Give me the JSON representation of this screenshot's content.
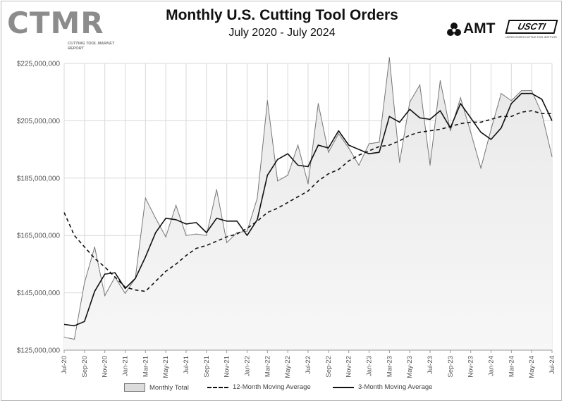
{
  "header": {
    "title": "Monthly U.S. Cutting Tool Orders",
    "subtitle": "July 2020 - July 2024"
  },
  "logos": {
    "ctmr": {
      "text": "CTMR",
      "subtitle": "CUTTING TOOL MARKET REPORT"
    },
    "amt": {
      "text": "AMT"
    },
    "usctr": {
      "text": "USCTI",
      "subtitle": "UNITED STATES CUTTING TOOL INSTITUTE"
    }
  },
  "colors": {
    "area_fill": "#dcdcdc",
    "area_edge": "#777777",
    "line": "#111111",
    "grid": "#d9d9d9",
    "axis_text": "#555555"
  },
  "chart_data": {
    "type": "area",
    "title": "Monthly U.S. Cutting Tool Orders",
    "subtitle": "July 2020 - July 2024",
    "ylim": [
      125000000,
      225000000
    ],
    "yticks": [
      125000000,
      145000000,
      165000000,
      185000000,
      205000000,
      225000000
    ],
    "ytick_labels": [
      "$125,000,000",
      "$145,000,000",
      "$165,000,000",
      "$185,000,000",
      "$205,000,000",
      "$225,000,000"
    ],
    "xtick_labels": [
      "Jul-20",
      "Sep-20",
      "Nov-20",
      "Jan-21",
      "Mar-21",
      "May-21",
      "Jul-21",
      "Sep-21",
      "Nov-21",
      "Jan-22",
      "Mar-22",
      "May-22",
      "Jul-22",
      "Sep-22",
      "Nov-22",
      "Jan-23",
      "Mar-23",
      "May-23",
      "Jul-23",
      "Sep-23",
      "Nov-23",
      "Jan-24",
      "Mar-24",
      "May-24",
      "Jul-24"
    ],
    "x": [
      "Jul-20",
      "Aug-20",
      "Sep-20",
      "Oct-20",
      "Nov-20",
      "Dec-20",
      "Jan-21",
      "Feb-21",
      "Mar-21",
      "Apr-21",
      "May-21",
      "Jun-21",
      "Jul-21",
      "Aug-21",
      "Sep-21",
      "Oct-21",
      "Nov-21",
      "Dec-21",
      "Jan-22",
      "Feb-22",
      "Mar-22",
      "Apr-22",
      "May-22",
      "Jun-22",
      "Jul-22",
      "Aug-22",
      "Sep-22",
      "Oct-22",
      "Nov-22",
      "Dec-22",
      "Jan-23",
      "Feb-23",
      "Mar-23",
      "Apr-23",
      "May-23",
      "Jun-23",
      "Jul-23",
      "Aug-23",
      "Sep-23",
      "Oct-23",
      "Nov-23",
      "Dec-23",
      "Jan-24",
      "Feb-24",
      "Mar-24",
      "Apr-24",
      "May-24",
      "Jun-24",
      "Jul-24"
    ],
    "grid": true,
    "legend_position": "bottom",
    "series": [
      {
        "name": "Monthly Total",
        "style": "area",
        "values": [
          129.5,
          128.8,
          148.5,
          161.0,
          144.0,
          150.5,
          144.8,
          150.0,
          178.0,
          171.0,
          164.5,
          175.5,
          165.0,
          165.5,
          165.0,
          181.0,
          162.5,
          166.0,
          166.5,
          178.0,
          212.0,
          184.0,
          186.0,
          196.5,
          183.0,
          211.0,
          194.0,
          200.5,
          195.5,
          189.5,
          197.0,
          197.5,
          227.0,
          190.5,
          211.5,
          217.5,
          189.5,
          219.0,
          201.5,
          213.0,
          201.0,
          188.5,
          202.0,
          214.5,
          212.0,
          215.5,
          215.5,
          207.5,
          192.5
        ]
      },
      {
        "name": "12-Month Moving Average",
        "style": "dashed",
        "values": [
          173.0,
          165.0,
          161.0,
          157.0,
          154.0,
          150.5,
          147.0,
          146.0,
          145.5,
          149.0,
          152.5,
          155.0,
          158.0,
          160.5,
          161.5,
          163.0,
          164.5,
          165.5,
          167.5,
          170.0,
          173.0,
          174.5,
          176.5,
          178.5,
          180.5,
          184.0,
          186.5,
          188.0,
          191.0,
          193.0,
          194.5,
          196.0,
          196.5,
          198.0,
          200.0,
          201.0,
          201.5,
          202.0,
          203.0,
          204.0,
          204.5,
          204.5,
          205.5,
          206.5,
          206.5,
          208.0,
          208.5,
          207.5,
          207.5
        ]
      },
      {
        "name": "3-Month Moving Average",
        "style": "solid",
        "values": [
          134.0,
          133.5,
          135.0,
          145.5,
          151.5,
          152.0,
          146.5,
          150.0,
          157.5,
          166.0,
          171.0,
          170.5,
          169.0,
          169.5,
          166.0,
          171.0,
          170.0,
          170.0,
          165.0,
          170.5,
          186.0,
          191.5,
          193.5,
          189.5,
          189.0,
          196.5,
          195.5,
          201.5,
          196.5,
          195.0,
          193.5,
          194.0,
          206.5,
          204.5,
          209.0,
          206.0,
          205.5,
          208.5,
          202.5,
          211.0,
          206.0,
          201.0,
          198.5,
          202.5,
          211.0,
          214.5,
          214.5,
          212.5,
          205.0
        ]
      }
    ]
  }
}
